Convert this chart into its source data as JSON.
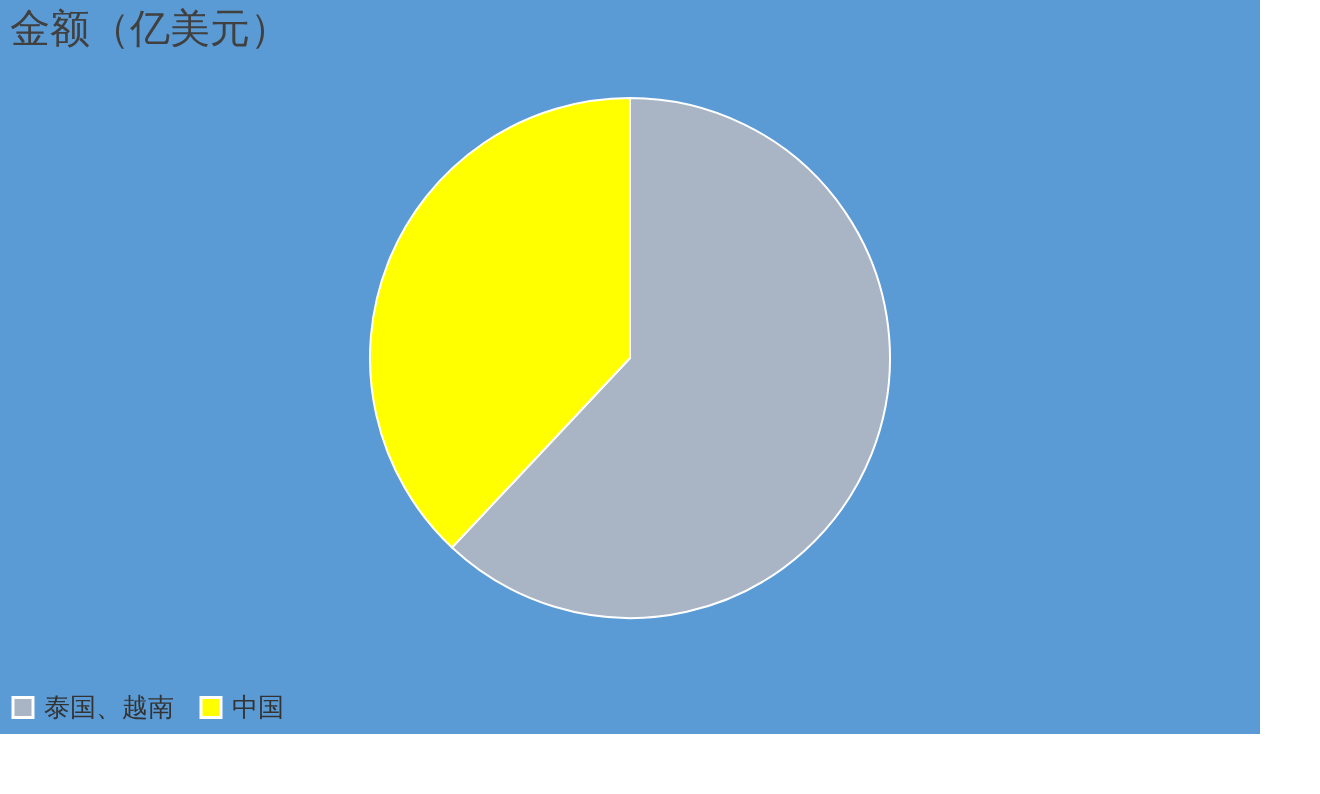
{
  "chart_data": {
    "type": "pie",
    "title": "金额（亿美元）",
    "categories": [
      "泰国、越南",
      "中国"
    ],
    "values": [
      62,
      38
    ],
    "colors": [
      "#a9b4c4",
      "#ffff00"
    ],
    "legend": "bottom"
  }
}
